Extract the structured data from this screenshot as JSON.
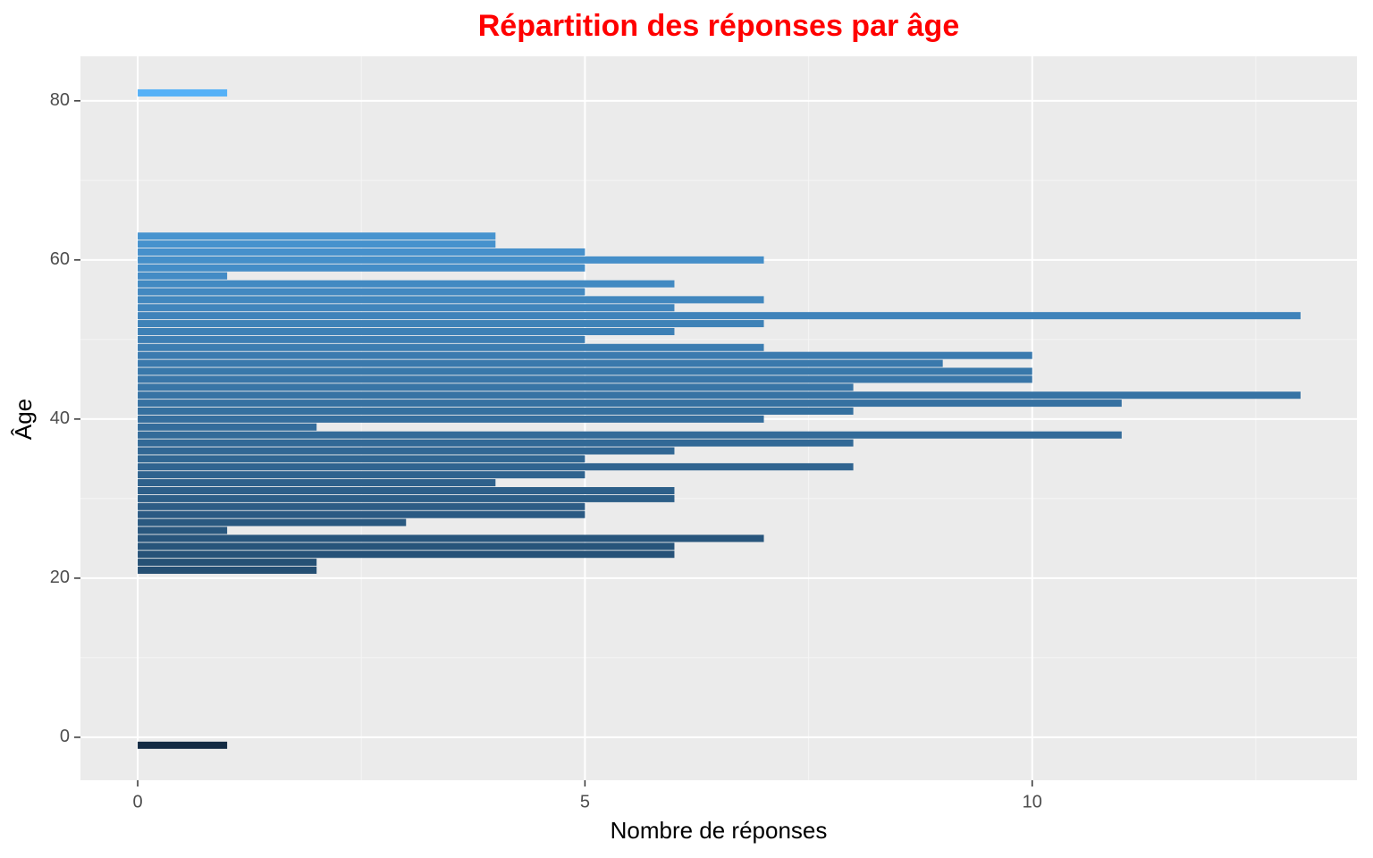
{
  "chart_data": {
    "type": "bar",
    "orientation": "horizontal",
    "title": "Répartition des réponses par âge",
    "xlabel": "Nombre de réponses",
    "ylabel": "Âge",
    "y": [
      -1,
      21,
      22,
      23,
      24,
      25,
      26,
      27,
      28,
      29,
      30,
      31,
      32,
      33,
      34,
      35,
      36,
      37,
      38,
      39,
      40,
      41,
      42,
      43,
      44,
      45,
      46,
      47,
      48,
      49,
      50,
      51,
      52,
      53,
      54,
      55,
      56,
      57,
      58,
      59,
      60,
      61,
      62,
      63,
      81
    ],
    "values": [
      1,
      2,
      2,
      6,
      6,
      7,
      1,
      3,
      5,
      5,
      6,
      6,
      4,
      5,
      8,
      5,
      6,
      8,
      11,
      2,
      7,
      8,
      11,
      13,
      8,
      10,
      10,
      9,
      10,
      7,
      5,
      6,
      7,
      13,
      6,
      7,
      5,
      6,
      1,
      5,
      7,
      5,
      4,
      4,
      1
    ],
    "fill_scale": {
      "low": "#132B43",
      "high": "#56B1F7"
    },
    "xlim": [
      -0.64,
      13.63
    ],
    "ylim": [
      -5.4,
      85.6
    ],
    "xticks": [
      0,
      5,
      10
    ],
    "yticks": [
      0,
      20,
      40,
      60,
      80
    ],
    "xminor": [
      2.5,
      7.5,
      12.5
    ],
    "yminor": [
      10,
      30,
      50,
      70
    ],
    "grid": true
  }
}
